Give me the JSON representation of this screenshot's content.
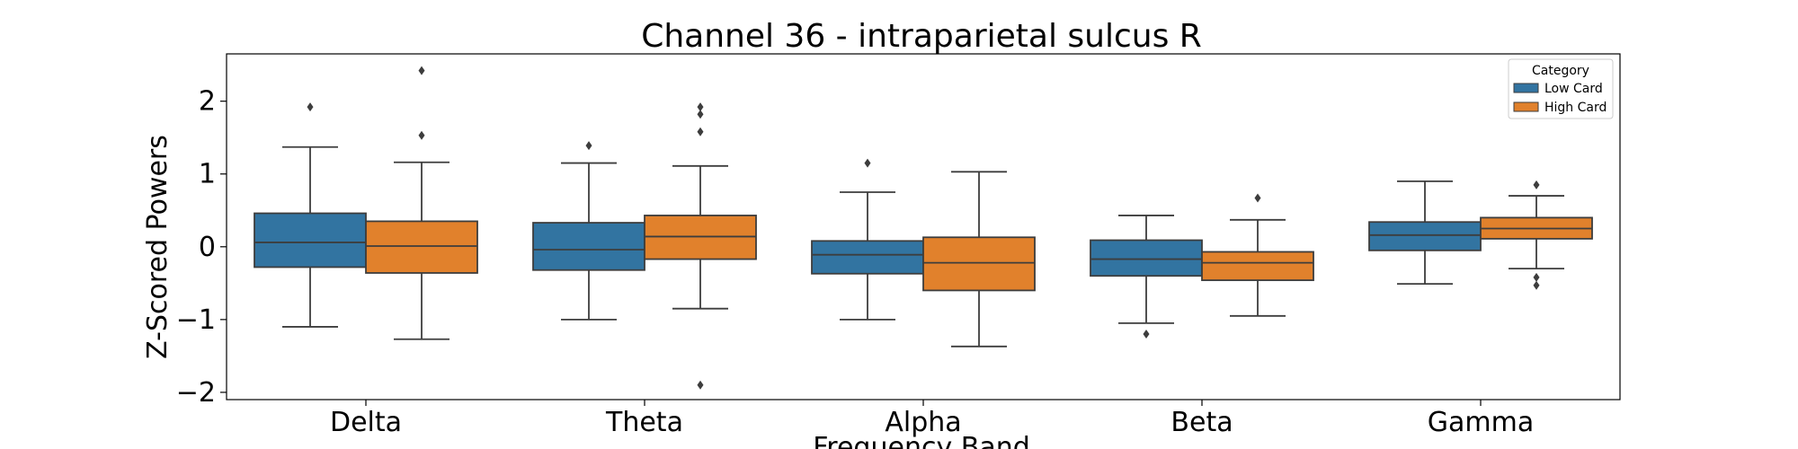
{
  "chart_data": {
    "type": "box",
    "title": "Channel 36 - intraparietal sulcus R",
    "xlabel": "Frequency Band",
    "ylabel": "Z-Scored Powers",
    "ylim": [
      -2.1,
      2.65
    ],
    "yticks": [
      2,
      1,
      0,
      -1,
      -2
    ],
    "ytick_labels": [
      "2",
      "1",
      "0",
      "−1",
      "−2"
    ],
    "categories": [
      "Delta",
      "Theta",
      "Alpha",
      "Beta",
      "Gamma"
    ],
    "legend": {
      "title": "Category",
      "position": "top-right"
    },
    "series": [
      {
        "name": "Low Card",
        "color": "#3274a1",
        "boxes": [
          {
            "whisker_low": -1.1,
            "q1": -0.28,
            "median": 0.06,
            "q3": 0.46,
            "whisker_high": 1.37,
            "outliers": [
              1.92
            ]
          },
          {
            "whisker_low": -1.0,
            "q1": -0.32,
            "median": -0.04,
            "q3": 0.33,
            "whisker_high": 1.15,
            "outliers": [
              1.39
            ]
          },
          {
            "whisker_low": -1.0,
            "q1": -0.37,
            "median": -0.11,
            "q3": 0.08,
            "whisker_high": 0.75,
            "outliers": [
              1.15
            ]
          },
          {
            "whisker_low": -1.05,
            "q1": -0.4,
            "median": -0.17,
            "q3": 0.09,
            "whisker_high": 0.43,
            "outliers": [
              -1.2
            ]
          },
          {
            "whisker_low": -0.51,
            "q1": -0.05,
            "median": 0.16,
            "q3": 0.34,
            "whisker_high": 0.9,
            "outliers": []
          }
        ]
      },
      {
        "name": "High Card",
        "color": "#e1812c",
        "boxes": [
          {
            "whisker_low": -1.27,
            "q1": -0.36,
            "median": 0.01,
            "q3": 0.35,
            "whisker_high": 1.16,
            "outliers": [
              1.53,
              2.42
            ]
          },
          {
            "whisker_low": -0.85,
            "q1": -0.17,
            "median": 0.14,
            "q3": 0.43,
            "whisker_high": 1.11,
            "outliers": [
              1.58,
              1.82,
              1.92,
              -1.9
            ]
          },
          {
            "whisker_low": -1.37,
            "q1": -0.6,
            "median": -0.22,
            "q3": 0.13,
            "whisker_high": 1.03,
            "outliers": []
          },
          {
            "whisker_low": -0.95,
            "q1": -0.46,
            "median": -0.22,
            "q3": -0.07,
            "whisker_high": 0.37,
            "outliers": [
              0.67
            ]
          },
          {
            "whisker_low": -0.3,
            "q1": 0.11,
            "median": 0.25,
            "q3": 0.4,
            "whisker_high": 0.7,
            "outliers": [
              0.85,
              -0.42,
              -0.53
            ]
          }
        ]
      }
    ]
  }
}
